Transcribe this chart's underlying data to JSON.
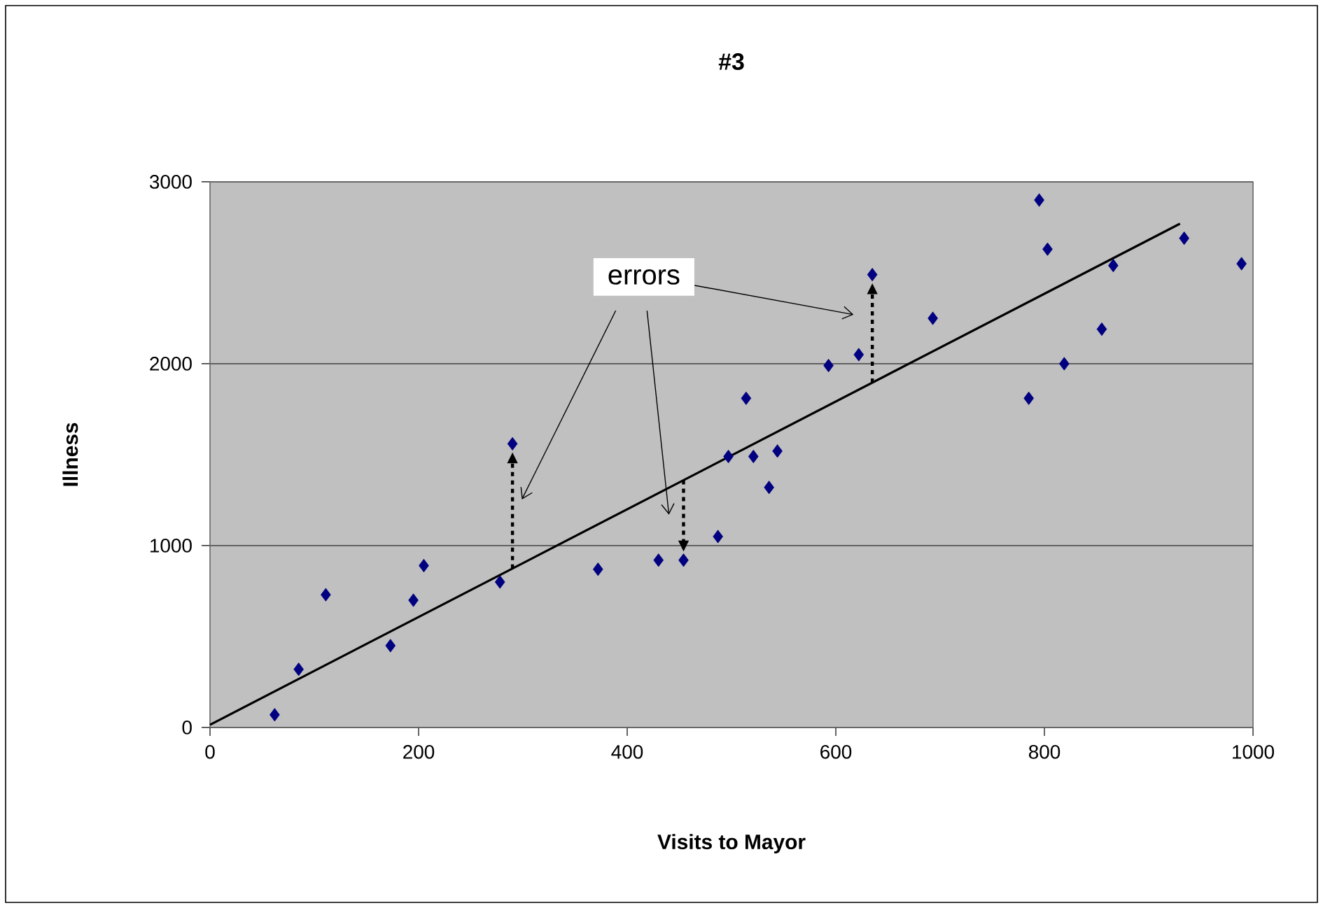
{
  "chart_data": {
    "type": "scatter",
    "title": "#3",
    "xlabel": "Visits to Mayor",
    "ylabel": "Illness",
    "xlim": [
      0,
      1000
    ],
    "xticks": [
      0,
      200,
      400,
      600,
      800,
      1000
    ],
    "ylim": [
      0,
      3000
    ],
    "yticks": [
      0,
      1000,
      2000,
      3000
    ],
    "grid": "y",
    "marker": "diamond",
    "annotations": [
      "errors"
    ],
    "series": [
      {
        "color": "#000080",
        "x": [
          62,
          85,
          111,
          173,
          195,
          205,
          278,
          290,
          372,
          430,
          454,
          487,
          497,
          514,
          521,
          536,
          544,
          593,
          622,
          635,
          693,
          785,
          795,
          803,
          819,
          855,
          866,
          934,
          989
        ],
        "values": [
          70,
          320,
          730,
          450,
          700,
          890,
          800,
          1560,
          870,
          920,
          920,
          1050,
          1490,
          1810,
          1490,
          1320,
          1520,
          1990,
          2050,
          2490,
          2250,
          1810,
          2900,
          2630,
          2000,
          2190,
          2540,
          2690,
          2550
        ]
      },
      {
        "type": "line",
        "color": "#000000",
        "marker": "none",
        "line_style": "solid",
        "x": [
          0,
          930
        ],
        "values": [
          15,
          2770
        ]
      }
    ]
  }
}
